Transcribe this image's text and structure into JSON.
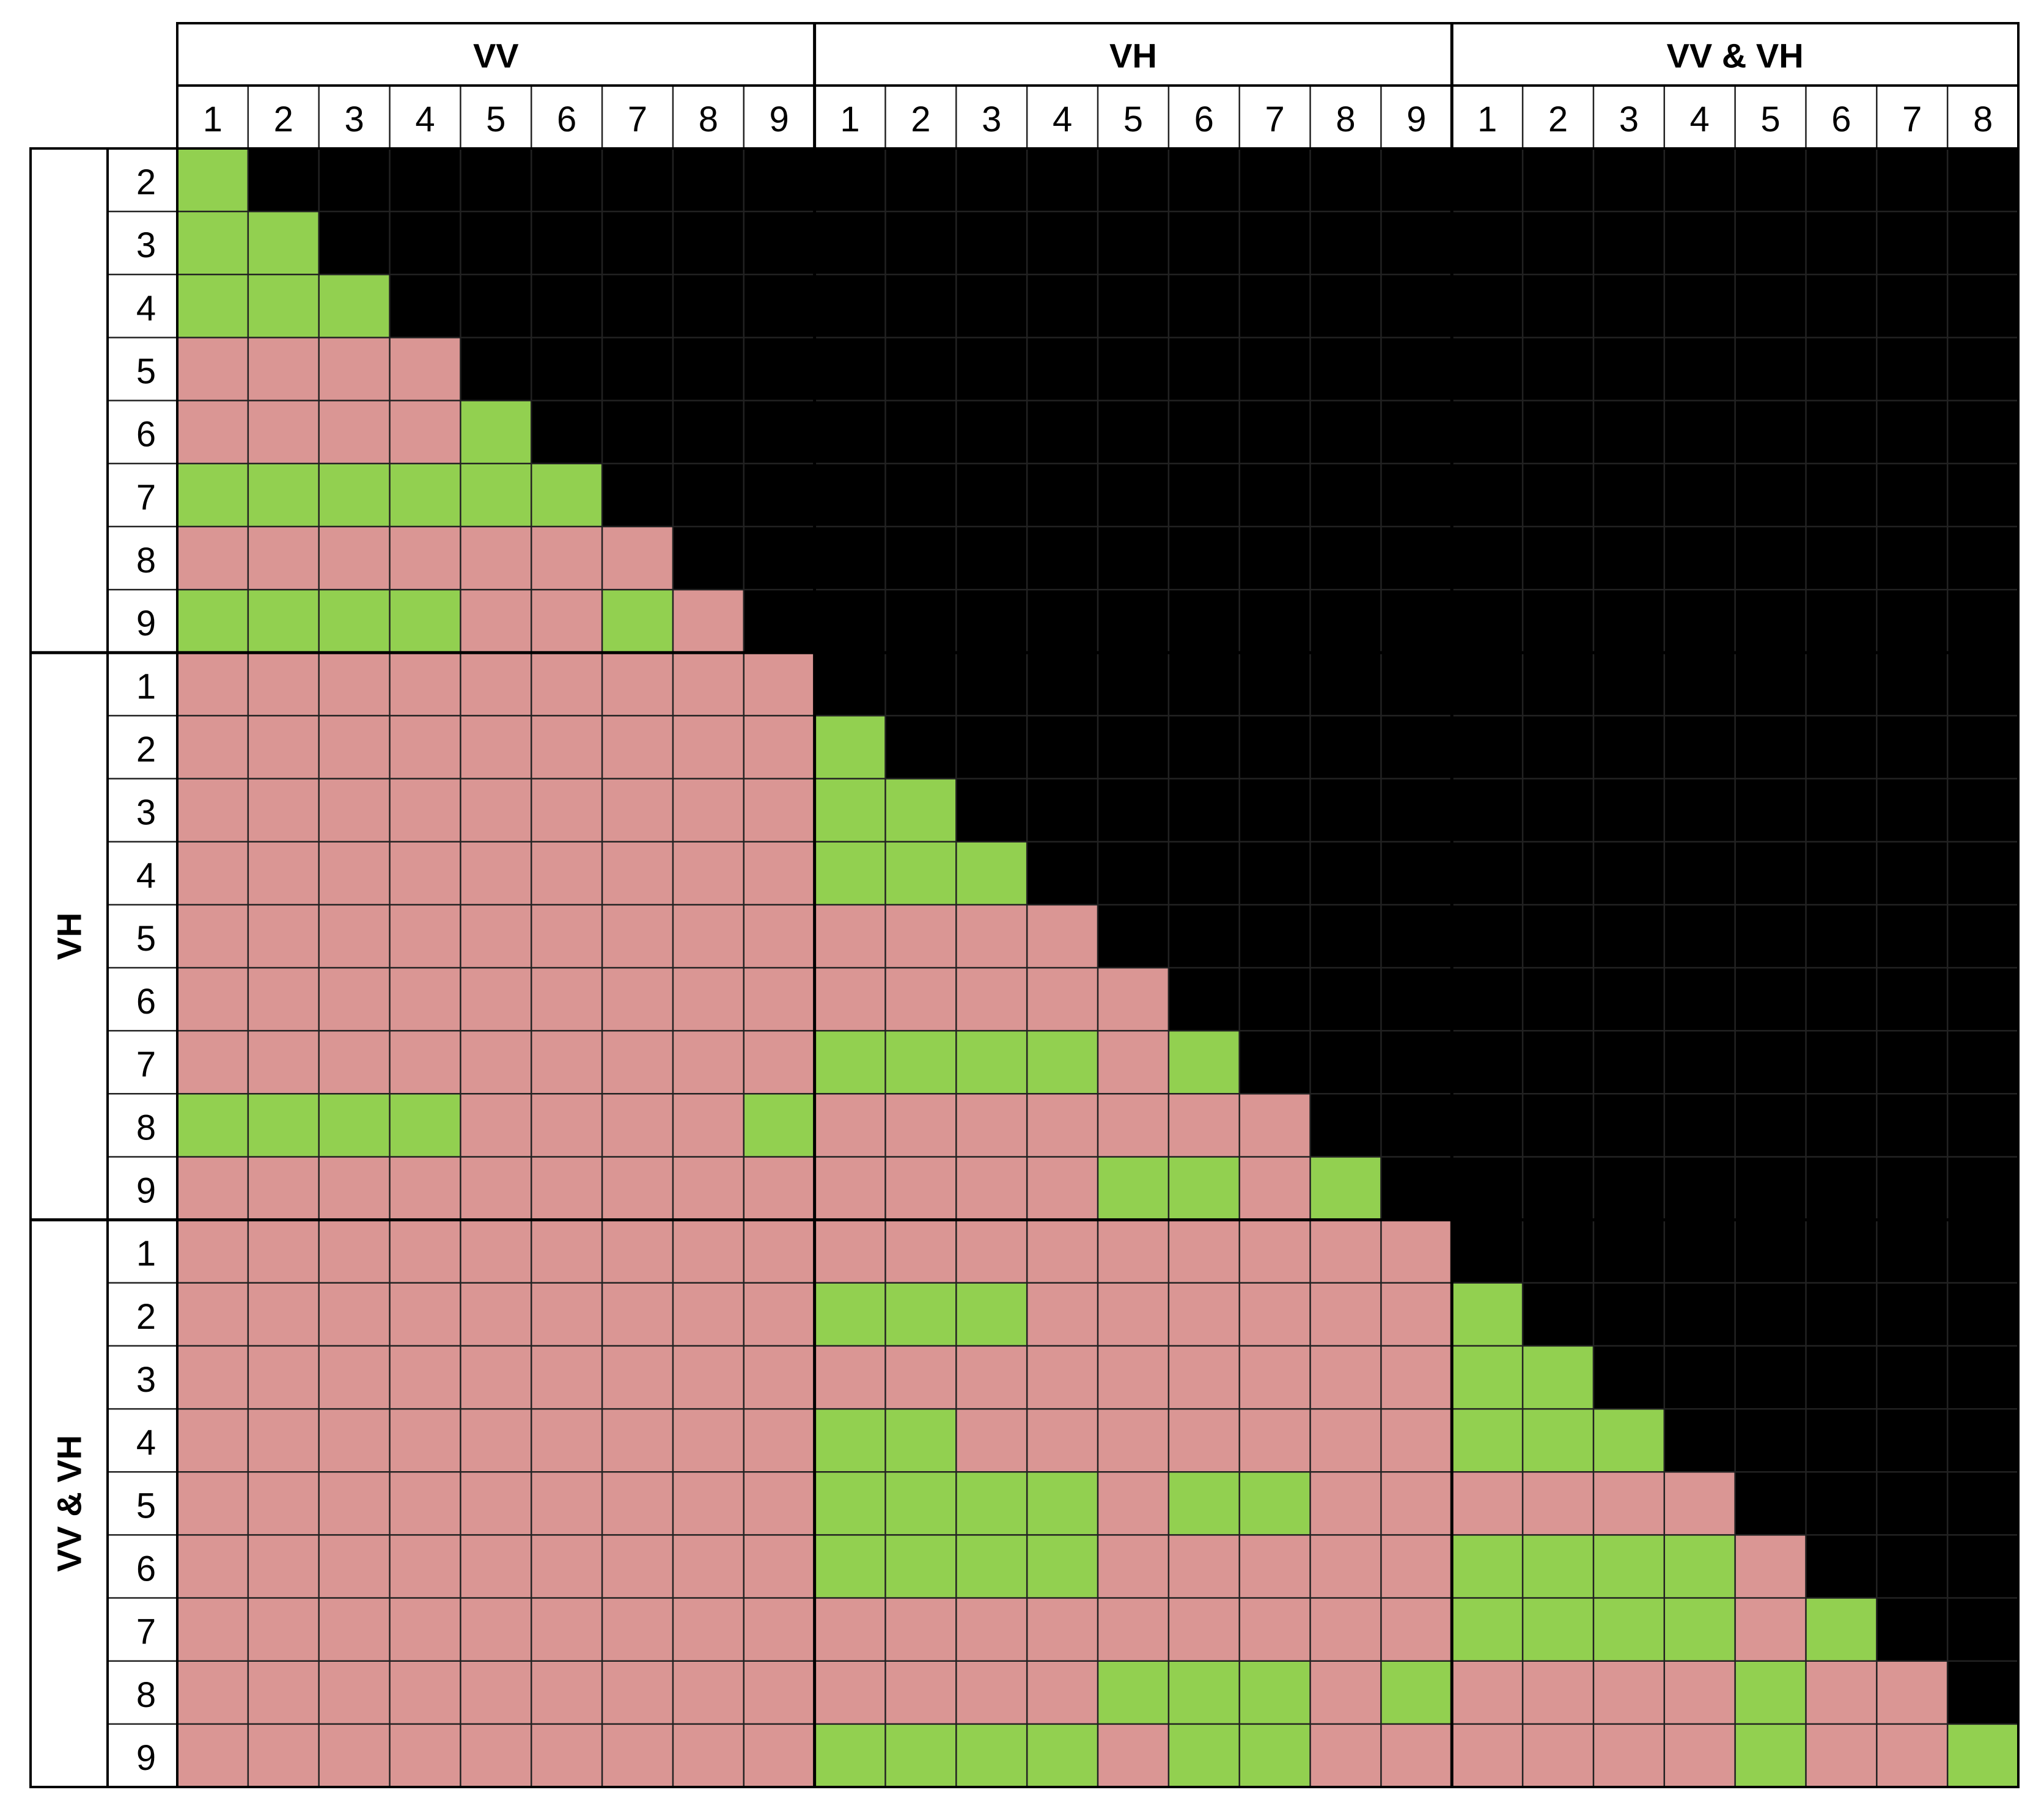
{
  "chart_data": {
    "type": "heatmap",
    "groups": [
      "VV",
      "VH",
      "VV & VH"
    ],
    "column_ticks": [
      [
        "1",
        "2",
        "3",
        "4",
        "5",
        "6",
        "7",
        "8",
        "9"
      ],
      [
        "1",
        "2",
        "3",
        "4",
        "5",
        "6",
        "7",
        "8",
        "9"
      ],
      [
        "1",
        "2",
        "3",
        "4",
        "5",
        "6",
        "7",
        "8"
      ]
    ],
    "row_ticks": [
      [
        "2",
        "3",
        "4",
        "5",
        "6",
        "7",
        "8",
        "9"
      ],
      [
        "1",
        "2",
        "3",
        "4",
        "5",
        "6",
        "7",
        "8",
        "9"
      ],
      [
        "1",
        "2",
        "3",
        "4",
        "5",
        "6",
        "7",
        "8",
        "9"
      ]
    ],
    "legend_codes": {
      "G": "green",
      "R": "red",
      "blank": "black"
    },
    "colors": {
      "G": "#92d050",
      "R": "#da9694",
      "blank": "#000000",
      "grid": "#000000"
    },
    "cells": [
      "G",
      "GG",
      "GGG",
      "RRRR",
      "RRRRG",
      "GGGGGG",
      "RRRRRRR",
      "GGGGRRGR",
      "RRRRRRRRR",
      "RRRRRRRRRG",
      "RRRRRRRRRGG",
      "RRRRRRRRRGGG",
      "RRRRRRRRRRRRR",
      "RRRRRRRRRRRRRR",
      "RRRRRRRRRGGGGRG",
      "GGGGRRRRGRRRRRRR",
      "RRRRRRRRRRRRRGGRG",
      "RRRRRRRRRRRRRRRRRR",
      "RRRRRRRRRGGGRRRRRRG",
      "RRRRRRRRRRRRRRRRRRGG",
      "RRRRRRRRRGGRRRRRRRGGG",
      "RRRRRRRRRGGGGRGGRRRRRR",
      "RRRRRRRRRGGGGRRRRRGGGGR",
      "RRRRRRRRRRRRRRRRRRGGGGRG",
      "RRRRRRRRRRRRRGGGRGRRRRGRR",
      "RRRRRRRRRGGGGRGGRRRRRRGRRG"
    ]
  }
}
